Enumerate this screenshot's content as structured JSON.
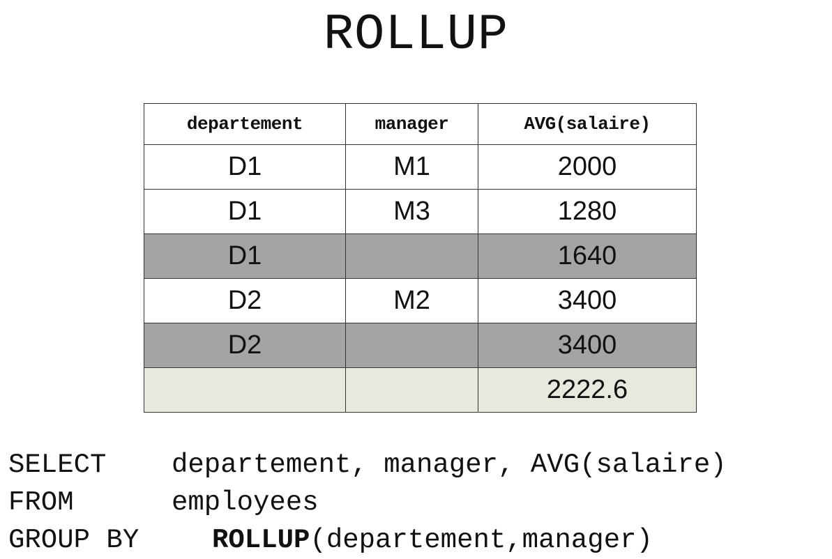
{
  "title": "ROLLUP",
  "table": {
    "headers": [
      "departement",
      "manager",
      "AVG(salaire)"
    ],
    "rows": [
      {
        "departement": "D1",
        "manager": "M1",
        "avg": "2000",
        "kind": "detail"
      },
      {
        "departement": "D1",
        "manager": "M3",
        "avg": "1280",
        "kind": "detail"
      },
      {
        "departement": "D1",
        "manager": "",
        "avg": "1640",
        "kind": "subtotal"
      },
      {
        "departement": "D2",
        "manager": "M2",
        "avg": "3400",
        "kind": "detail"
      },
      {
        "departement": "D2",
        "manager": "",
        "avg": "3400",
        "kind": "subtotal"
      },
      {
        "departement": "",
        "manager": "",
        "avg": "2222.6",
        "kind": "grand-total"
      }
    ],
    "colors": {
      "detail": "#ffffff",
      "subtotal": "#a4a4a4",
      "grand_total": "#e9e8de"
    }
  },
  "sql": {
    "select_kw": "SELECT",
    "select_args": "departement, manager, AVG(salaire)",
    "from_kw": "FROM",
    "from_args": "employees",
    "group_kw": "GROUP BY",
    "rollup_kw": "ROLLUP",
    "rollup_args": "(departement,manager)"
  }
}
